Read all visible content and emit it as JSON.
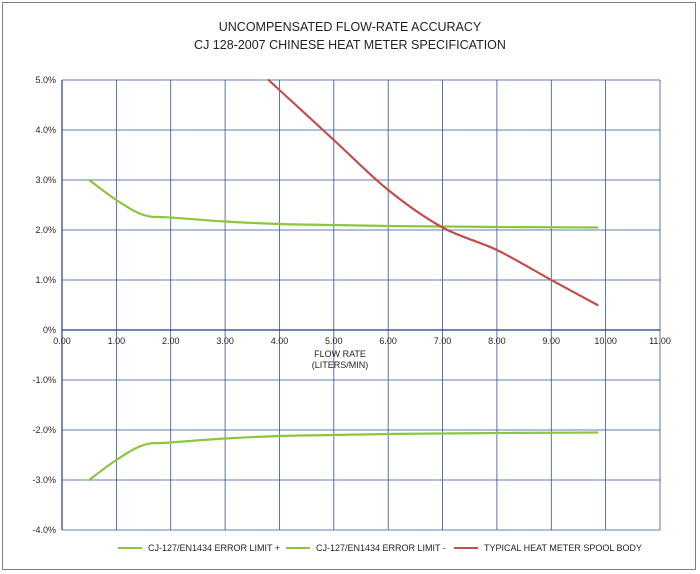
{
  "chart_data": {
    "type": "line",
    "title": "UNCOMPENSATED FLOW-RATE ACCURACY",
    "subtitle": "CJ 128-2007 CHINESE HEAT METER SPECIFICATION",
    "xlabel": "FLOW RATE",
    "xlabel_unit": "(LITERS/MIN)",
    "ylabel": "",
    "xlim": [
      0,
      11
    ],
    "ylim": [
      -4,
      5
    ],
    "x_ticks": [
      "0.00",
      "1.00",
      "2.00",
      "3.00",
      "4.00",
      "5.00",
      "6.00",
      "7.00",
      "8.00",
      "9.00",
      "10.00",
      "11.00"
    ],
    "y_ticks": [
      "5.0%",
      "4.0%",
      "3.0%",
      "2.0%",
      "1.0%",
      "0%",
      "-1.0%",
      "-2.0%",
      "-3.0%",
      "-4.0%"
    ],
    "grid": true,
    "legend_position": "bottom",
    "series": [
      {
        "name": "CJ-127/EN1434 ERROR LIMIT +",
        "color": "#8cc63f",
        "x": [
          0.5,
          1.0,
          1.5,
          2.0,
          3.0,
          4.0,
          5.0,
          6.0,
          7.0,
          8.0,
          9.0,
          9.85
        ],
        "y": [
          3.0,
          2.6,
          2.3,
          2.25,
          2.17,
          2.12,
          2.1,
          2.08,
          2.07,
          2.06,
          2.055,
          2.05
        ]
      },
      {
        "name": "CJ-127/EN1434 ERROR LIMIT -",
        "color": "#8cc63f",
        "x": [
          0.5,
          1.0,
          1.5,
          2.0,
          3.0,
          4.0,
          5.0,
          6.0,
          7.0,
          8.0,
          9.0,
          9.85
        ],
        "y": [
          -3.0,
          -2.6,
          -2.3,
          -2.25,
          -2.17,
          -2.12,
          -2.1,
          -2.08,
          -2.07,
          -2.06,
          -2.055,
          -2.05
        ]
      },
      {
        "name": "TYPICAL HEAT METER SPOOL BODY",
        "color": "#c1504d",
        "x": [
          3.8,
          4.0,
          5.0,
          6.0,
          7.0,
          8.0,
          9.0,
          9.85
        ],
        "y": [
          5.0,
          4.8,
          3.8,
          2.8,
          2.05,
          1.6,
          1.0,
          0.5
        ]
      }
    ]
  }
}
